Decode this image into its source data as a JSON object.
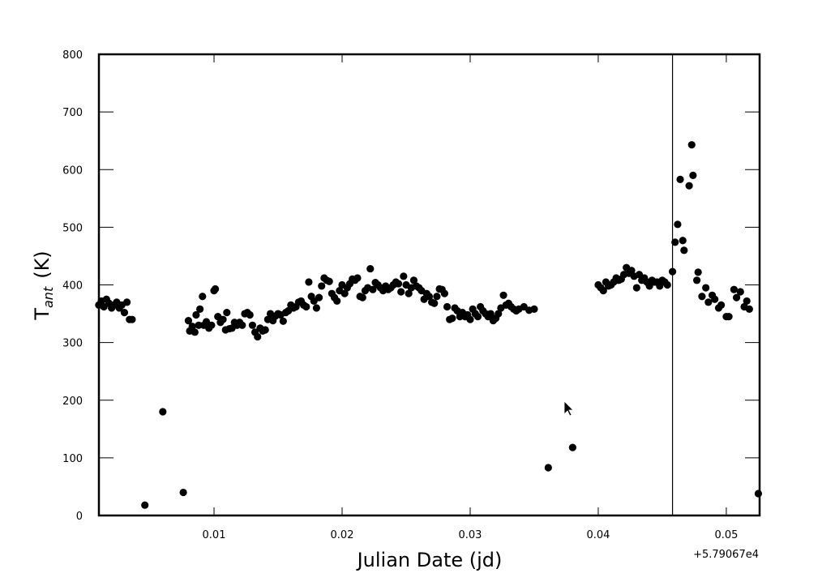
{
  "chart_data": {
    "type": "scatter",
    "xlabel": "Julian Date (jd)",
    "ylabel": "T",
    "ylabel_sub": "ant",
    "ylabel_unit": "(K)",
    "x_offset_label": "+5.79067e4",
    "color": "#000000",
    "xlim": [
      0.00101,
      0.0526
    ],
    "xticks": [
      0.01,
      0.02,
      0.03,
      0.04,
      0.05
    ],
    "ylim": [
      0,
      800
    ],
    "yticks": [
      0,
      100,
      200,
      300,
      400,
      500,
      600,
      700,
      800
    ],
    "vline": 0.0458,
    "x": [
      0.001,
      0.0012,
      0.0014,
      0.0016,
      0.0018,
      0.002,
      0.0022,
      0.0024,
      0.0026,
      0.0028,
      0.003,
      0.0032,
      0.0034,
      0.0036,
      0.0046,
      0.006,
      0.0076,
      0.008,
      0.0081,
      0.0083,
      0.0085,
      0.0086,
      0.0088,
      0.0089,
      0.0091,
      0.0092,
      0.0094,
      0.0096,
      0.0098,
      0.01,
      0.0101,
      0.0103,
      0.0105,
      0.0107,
      0.0109,
      0.011,
      0.0112,
      0.0114,
      0.0116,
      0.0118,
      0.012,
      0.0122,
      0.0124,
      0.0126,
      0.0128,
      0.013,
      0.0132,
      0.0134,
      0.0136,
      0.0138,
      0.014,
      0.0142,
      0.0144,
      0.0146,
      0.0148,
      0.015,
      0.0152,
      0.0154,
      0.0156,
      0.0158,
      0.016,
      0.0162,
      0.0164,
      0.0166,
      0.0168,
      0.017,
      0.0172,
      0.0174,
      0.0176,
      0.0178,
      0.018,
      0.0182,
      0.0184,
      0.0186,
      0.0188,
      0.019,
      0.0192,
      0.0194,
      0.0196,
      0.0198,
      0.02,
      0.0202,
      0.0204,
      0.0206,
      0.0208,
      0.021,
      0.0212,
      0.0214,
      0.0216,
      0.0218,
      0.022,
      0.0222,
      0.0224,
      0.0226,
      0.0228,
      0.023,
      0.0232,
      0.0234,
      0.0236,
      0.0238,
      0.024,
      0.0242,
      0.0244,
      0.0246,
      0.0248,
      0.025,
      0.0252,
      0.0254,
      0.0256,
      0.0258,
      0.026,
      0.0262,
      0.0264,
      0.0266,
      0.0268,
      0.027,
      0.0272,
      0.0274,
      0.0276,
      0.0278,
      0.028,
      0.0282,
      0.0284,
      0.0286,
      0.0288,
      0.029,
      0.0292,
      0.0294,
      0.0296,
      0.0298,
      0.03,
      0.0302,
      0.0304,
      0.0306,
      0.0308,
      0.031,
      0.0312,
      0.0314,
      0.0316,
      0.0318,
      0.032,
      0.0322,
      0.0324,
      0.0326,
      0.0328,
      0.033,
      0.0332,
      0.0334,
      0.0336,
      0.0338,
      0.0342,
      0.0346,
      0.035,
      0.0361,
      0.038,
      0.04,
      0.0402,
      0.0404,
      0.0406,
      0.0408,
      0.041,
      0.0412,
      0.0414,
      0.0416,
      0.0418,
      0.042,
      0.0422,
      0.0424,
      0.0426,
      0.0428,
      0.043,
      0.0432,
      0.0434,
      0.0436,
      0.0438,
      0.044,
      0.0442,
      0.0444,
      0.0446,
      0.0448,
      0.045,
      0.0452,
      0.0454,
      0.0458,
      0.046,
      0.0462,
      0.0464,
      0.0466,
      0.0467,
      0.0471,
      0.0473,
      0.0474,
      0.0477,
      0.0478,
      0.0481,
      0.0484,
      0.0486,
      0.0489,
      0.0491,
      0.0494,
      0.0496,
      0.05,
      0.0502,
      0.0506,
      0.0508,
      0.0511,
      0.0514,
      0.0516,
      0.0518,
      0.0525
    ],
    "values": [
      365,
      372,
      362,
      375,
      368,
      360,
      365,
      370,
      360,
      365,
      352,
      370,
      340,
      340,
      18,
      180,
      40,
      338,
      320,
      328,
      318,
      348,
      330,
      358,
      380,
      330,
      336,
      325,
      330,
      390,
      393,
      345,
      335,
      340,
      322,
      352,
      324,
      325,
      335,
      330,
      335,
      330,
      350,
      352,
      348,
      330,
      318,
      310,
      325,
      320,
      322,
      340,
      350,
      338,
      346,
      350,
      348,
      337,
      352,
      355,
      365,
      360,
      362,
      370,
      372,
      365,
      362,
      405,
      380,
      372,
      360,
      378,
      398,
      412,
      408,
      406,
      385,
      378,
      372,
      390,
      400,
      385,
      395,
      402,
      410,
      408,
      412,
      380,
      378,
      390,
      395,
      428,
      392,
      404,
      400,
      395,
      390,
      398,
      392,
      395,
      400,
      405,
      402,
      388,
      415,
      400,
      385,
      395,
      408,
      398,
      395,
      390,
      375,
      385,
      380,
      370,
      368,
      380,
      393,
      392,
      385,
      362,
      340,
      342,
      360,
      355,
      345,
      352,
      345,
      348,
      340,
      358,
      350,
      345,
      362,
      355,
      350,
      345,
      350,
      338,
      342,
      350,
      360,
      382,
      365,
      368,
      362,
      358,
      355,
      358,
      362,
      356,
      358,
      83,
      118,
      400,
      395,
      390,
      405,
      398,
      400,
      405,
      412,
      408,
      410,
      418,
      430,
      420,
      425,
      415,
      395,
      418,
      408,
      412,
      405,
      398,
      408,
      405,
      405,
      398,
      408,
      405,
      400,
      423,
      474,
      505,
      583,
      477,
      460,
      572,
      643,
      590,
      408,
      422,
      380,
      395,
      370,
      382,
      375,
      360,
      365,
      345,
      345,
      392,
      378,
      388,
      362,
      372,
      358,
      38
    ]
  }
}
